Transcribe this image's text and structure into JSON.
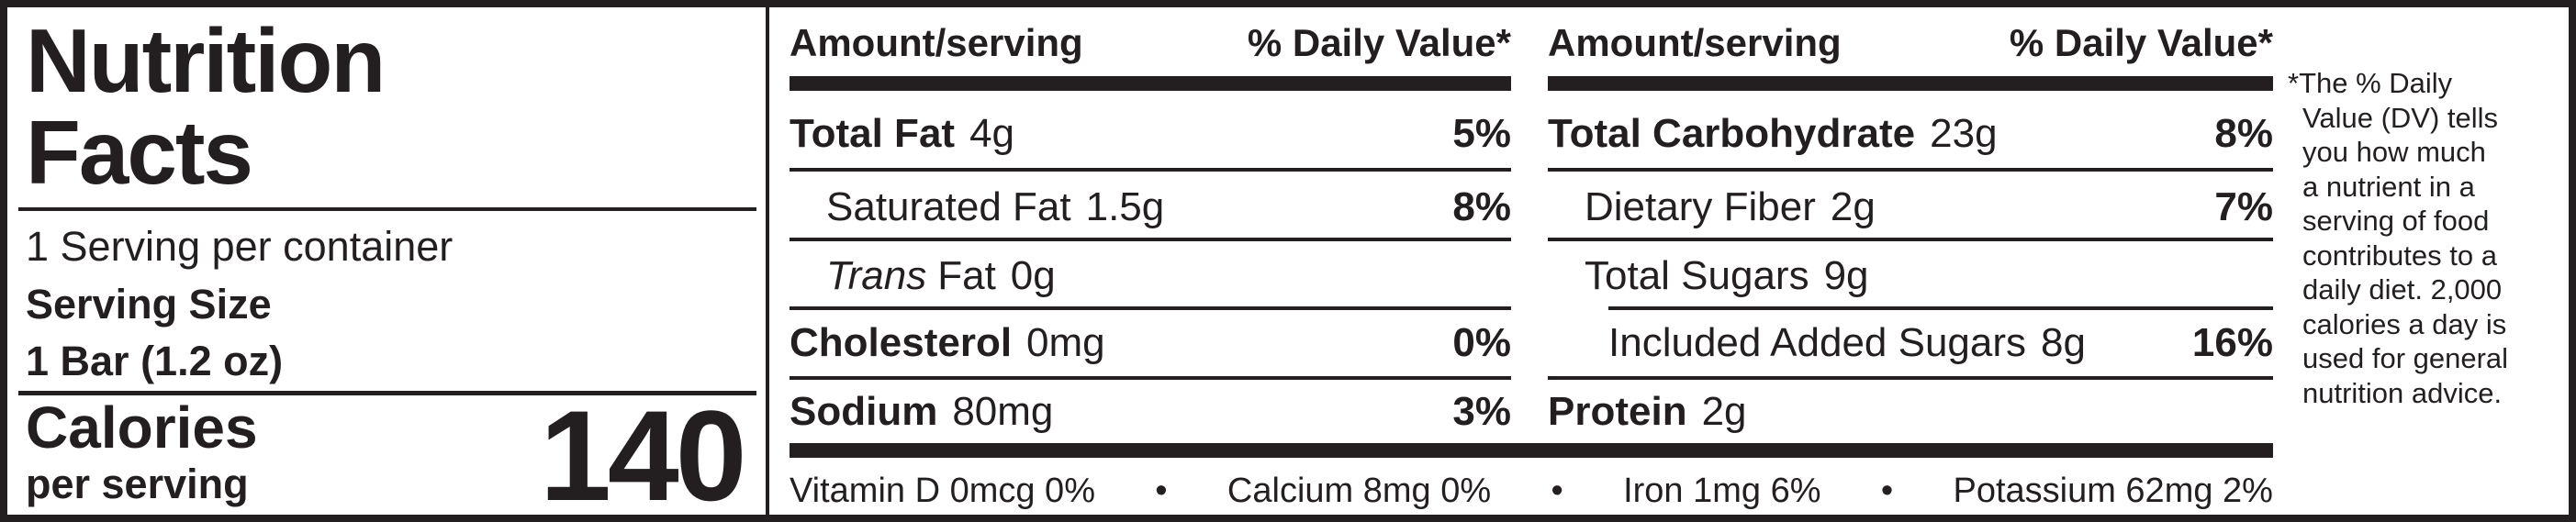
{
  "header": {
    "title_line1": "Nutrition",
    "title_line2": "Facts",
    "servings_per_container": "1 Serving per container",
    "serving_size_label": "Serving Size",
    "serving_size_value": "1 Bar (1.2 oz)",
    "calories_label": "Calories",
    "calories_sublabel": "per serving",
    "calories_value": "140"
  },
  "column_headers": {
    "amount": "Amount/serving",
    "dv": "% Daily Value*"
  },
  "left_nutrients": [
    {
      "name": "Total Fat",
      "amount": "4g",
      "dv": "5%"
    },
    {
      "name": "Saturated Fat",
      "amount": "1.5g",
      "dv": "8%"
    },
    {
      "name_italic": "Trans",
      "name": "Fat",
      "amount": "0g",
      "dv": ""
    },
    {
      "name": "Cholesterol",
      "amount": "0mg",
      "dv": "0%"
    },
    {
      "name": "Sodium",
      "amount": "80mg",
      "dv": "3%"
    }
  ],
  "right_nutrients": [
    {
      "name": "Total Carbohydrate",
      "amount": "23g",
      "dv": "8%"
    },
    {
      "name": "Dietary Fiber",
      "amount": "2g",
      "dv": "7%"
    },
    {
      "name": "Total Sugars",
      "amount": "9g",
      "dv": ""
    },
    {
      "name": "Included Added Sugars",
      "amount": "8g",
      "dv": "16%"
    },
    {
      "name": "Protein",
      "amount": "2g",
      "dv": ""
    }
  ],
  "vitamins": [
    "Vitamin D 0mcg 0%",
    "•",
    "Calcium 8mg 0%",
    "•",
    "Iron 1mg 6%",
    "•",
    "Potassium 62mg 2%"
  ],
  "footnote": {
    "lines": [
      "*The % Daily",
      "Value (DV) tells",
      "you how much",
      "a nutrient in a",
      "serving of food",
      "contributes to a",
      "daily diet. 2,000",
      "calories a day is",
      "used for general",
      "nutrition advice."
    ]
  },
  "colors": {
    "ink": "#231f20",
    "background": "#ffffff"
  }
}
